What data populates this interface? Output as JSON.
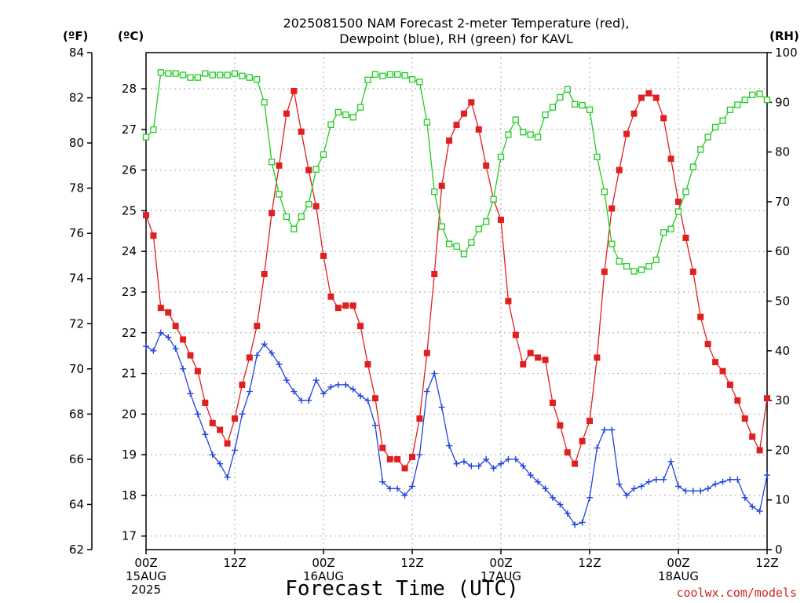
{
  "chart_data": {
    "type": "line",
    "title": [
      "2025081500 NAM Forecast 2-meter Temperature (red),",
      "Dewpoint (blue), RH (green) for KAVL"
    ],
    "units": {
      "left_f": "(ºF)",
      "left_c": "(ºC)",
      "right": "(RH)"
    },
    "xlabel": "Forecast Time (UTC)",
    "credit": "coolwx.com/models",
    "x_ticks": [
      {
        "hour": 0,
        "lines": [
          "00Z",
          "15AUG",
          "2025"
        ]
      },
      {
        "hour": 12,
        "lines": [
          "12Z"
        ]
      },
      {
        "hour": 24,
        "lines": [
          "00Z",
          "16AUG"
        ]
      },
      {
        "hour": 36,
        "lines": [
          "12Z"
        ]
      },
      {
        "hour": 48,
        "lines": [
          "00Z",
          "17AUG"
        ]
      },
      {
        "hour": 60,
        "lines": [
          "12Z"
        ]
      },
      {
        "hour": 72,
        "lines": [
          "00Z",
          "18AUG"
        ]
      },
      {
        "hour": 84,
        "lines": [
          "12Z"
        ]
      }
    ],
    "xlim": [
      0,
      84
    ],
    "f_ticks": [
      "62",
      "64",
      "66",
      "68",
      "70",
      "72",
      "74",
      "76",
      "78",
      "80",
      "82",
      "84"
    ],
    "f_lim": [
      62,
      84
    ],
    "c_ticks": [
      "17",
      "18",
      "19",
      "20",
      "21",
      "22",
      "23",
      "24",
      "25",
      "26",
      "27",
      "28"
    ],
    "rh_ticks": [
      "0",
      "10",
      "20",
      "30",
      "40",
      "50",
      "60",
      "70",
      "80",
      "90",
      "100"
    ],
    "rh_lim": [
      0,
      100
    ],
    "grid": true,
    "series": [
      {
        "name": "Temperature",
        "unit": "F",
        "color": "#e02020",
        "marker": "filled-square",
        "x": [
          0,
          1,
          2,
          3,
          4,
          5,
          6,
          7,
          8,
          9,
          10,
          11,
          12,
          13,
          14,
          15,
          16,
          17,
          18,
          19,
          20,
          21,
          22,
          23,
          24,
          25,
          26,
          27,
          28,
          29,
          30,
          31,
          32,
          33,
          34,
          35,
          36,
          37,
          38,
          39,
          40,
          41,
          42,
          43,
          44,
          45,
          46,
          47,
          48,
          49,
          50,
          51,
          52,
          53,
          54,
          55,
          56,
          57,
          58,
          59,
          60,
          61,
          62,
          63,
          64,
          65,
          66,
          67,
          68,
          69,
          70,
          71,
          72,
          73,
          74,
          75,
          76,
          77,
          78,
          79,
          80,
          81,
          82,
          83,
          84
        ],
        "values": [
          76.8,
          75.9,
          72.7,
          72.5,
          71.9,
          71.3,
          70.6,
          69.9,
          68.5,
          67.6,
          67.3,
          66.7,
          67.8,
          69.3,
          70.5,
          71.9,
          74.2,
          76.9,
          79.0,
          81.3,
          82.3,
          80.5,
          78.8,
          77.2,
          75.0,
          73.2,
          72.7,
          72.8,
          72.8,
          71.9,
          70.2,
          68.7,
          66.5,
          66.0,
          66.0,
          65.6,
          66.1,
          67.8,
          70.7,
          74.2,
          78.1,
          80.1,
          80.8,
          81.3,
          81.8,
          80.6,
          79.0,
          77.5,
          76.6,
          73.0,
          71.5,
          70.2,
          70.7,
          70.5,
          70.4,
          68.5,
          67.5,
          66.3,
          65.8,
          66.8,
          67.7,
          70.5,
          74.3,
          77.1,
          78.8,
          80.4,
          81.3,
          82.0,
          82.2,
          82.0,
          81.1,
          79.3,
          77.4,
          75.8,
          74.3,
          72.3,
          71.1,
          70.3,
          69.9,
          69.3,
          68.6,
          67.8,
          67.0,
          66.4,
          68.7
        ]
      },
      {
        "name": "Dewpoint",
        "unit": "F",
        "color": "#2244dd",
        "marker": "plus",
        "x": [
          0,
          1,
          2,
          3,
          4,
          5,
          6,
          7,
          8,
          9,
          10,
          11,
          12,
          13,
          14,
          15,
          16,
          17,
          18,
          19,
          20,
          21,
          22,
          23,
          24,
          25,
          26,
          27,
          28,
          29,
          30,
          31,
          32,
          33,
          34,
          35,
          36,
          37,
          38,
          39,
          40,
          41,
          42,
          43,
          44,
          45,
          46,
          47,
          48,
          49,
          50,
          51,
          52,
          53,
          54,
          55,
          56,
          57,
          58,
          59,
          60,
          61,
          62,
          63,
          64,
          65,
          66,
          67,
          68,
          69,
          70,
          71,
          72,
          73,
          74,
          75,
          76,
          77,
          78,
          79,
          80,
          81,
          82,
          83,
          84
        ],
        "values": [
          71.0,
          70.8,
          71.6,
          71.4,
          70.9,
          70.0,
          68.9,
          68.0,
          67.1,
          66.2,
          65.8,
          65.2,
          66.4,
          68.0,
          69.0,
          70.6,
          71.1,
          70.7,
          70.2,
          69.5,
          69.0,
          68.6,
          68.6,
          69.5,
          68.9,
          69.2,
          69.3,
          69.3,
          69.1,
          68.8,
          68.6,
          67.5,
          65.0,
          64.7,
          64.7,
          64.4,
          64.8,
          66.2,
          69.0,
          69.8,
          68.3,
          66.6,
          65.8,
          65.9,
          65.7,
          65.7,
          66.0,
          65.6,
          65.8,
          66.0,
          66.0,
          65.7,
          65.3,
          65.0,
          64.7,
          64.3,
          64.0,
          63.6,
          63.1,
          63.2,
          64.3,
          66.5,
          67.3,
          67.3,
          64.9,
          64.4,
          64.7,
          64.8,
          65.0,
          65.1,
          65.1,
          65.9,
          64.8,
          64.6,
          64.6,
          64.6,
          64.7,
          64.9,
          65.0,
          65.1,
          65.1,
          64.3,
          63.9,
          63.7,
          65.3
        ]
      },
      {
        "name": "RH",
        "unit": "%",
        "color": "#22cc22",
        "marker": "open-square",
        "x": [
          0,
          1,
          2,
          3,
          4,
          5,
          6,
          7,
          8,
          9,
          10,
          11,
          12,
          13,
          14,
          15,
          16,
          17,
          18,
          19,
          20,
          21,
          22,
          23,
          24,
          25,
          26,
          27,
          28,
          29,
          30,
          31,
          32,
          33,
          34,
          35,
          36,
          37,
          38,
          39,
          40,
          41,
          42,
          43,
          44,
          45,
          46,
          47,
          48,
          49,
          50,
          51,
          52,
          53,
          54,
          55,
          56,
          57,
          58,
          59,
          60,
          61,
          62,
          63,
          64,
          65,
          66,
          67,
          68,
          69,
          70,
          71,
          72,
          73,
          74,
          75,
          76,
          77,
          78,
          79,
          80,
          81,
          82,
          83,
          84
        ],
        "values": [
          83,
          84.5,
          96,
          95.8,
          95.8,
          95.5,
          95,
          95,
          95.8,
          95.5,
          95.5,
          95.5,
          95.8,
          95.3,
          95,
          94.6,
          90,
          78,
          71.5,
          67,
          64.5,
          67,
          69.5,
          76.5,
          79.5,
          85.5,
          88,
          87.5,
          87,
          89,
          94.5,
          95.6,
          95.3,
          95.6,
          95.6,
          95.4,
          94.6,
          94.1,
          86,
          72,
          65,
          61.5,
          61,
          59.5,
          61.8,
          64.5,
          66,
          70.5,
          79,
          83.5,
          86.5,
          84,
          83.5,
          83,
          87.5,
          89,
          91,
          92.6,
          89.6,
          89.4,
          88.5,
          79,
          72,
          61.5,
          58,
          57,
          56,
          56.3,
          57,
          58.3,
          63.8,
          64.5,
          68,
          72,
          77,
          80.5,
          83,
          85,
          86.3,
          88.5,
          89.5,
          90.5,
          91.5,
          91.7,
          90.5
        ]
      }
    ]
  }
}
